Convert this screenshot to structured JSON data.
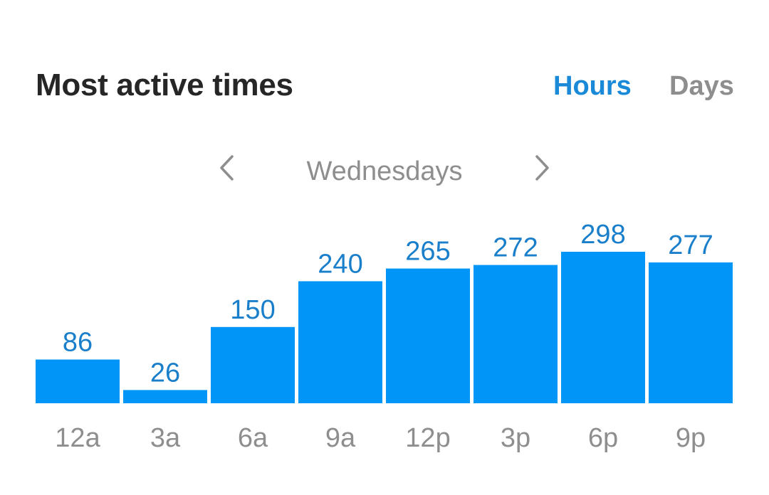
{
  "header": {
    "title": "Most active times",
    "toggle": {
      "options": [
        "Hours",
        "Days"
      ],
      "selected": "Hours"
    }
  },
  "period_nav": {
    "label": "Wednesdays",
    "prev_icon": "chevron-left-icon",
    "next_icon": "chevron-right-icon"
  },
  "colors": {
    "bar": "#0095F6",
    "value_label": "#1A7FCB",
    "axis_label": "#8E8E8E",
    "toggle_active": "#1A8AD8",
    "toggle_inactive": "#8E8E8E"
  },
  "chart_data": {
    "type": "bar",
    "categories": [
      "12a",
      "3a",
      "6a",
      "9a",
      "12p",
      "3p",
      "6p",
      "9p"
    ],
    "values": [
      86,
      26,
      150,
      240,
      265,
      272,
      298,
      277
    ],
    "data_labels": true,
    "grid": false,
    "legend": "none",
    "ylim": [
      0,
      298
    ]
  }
}
